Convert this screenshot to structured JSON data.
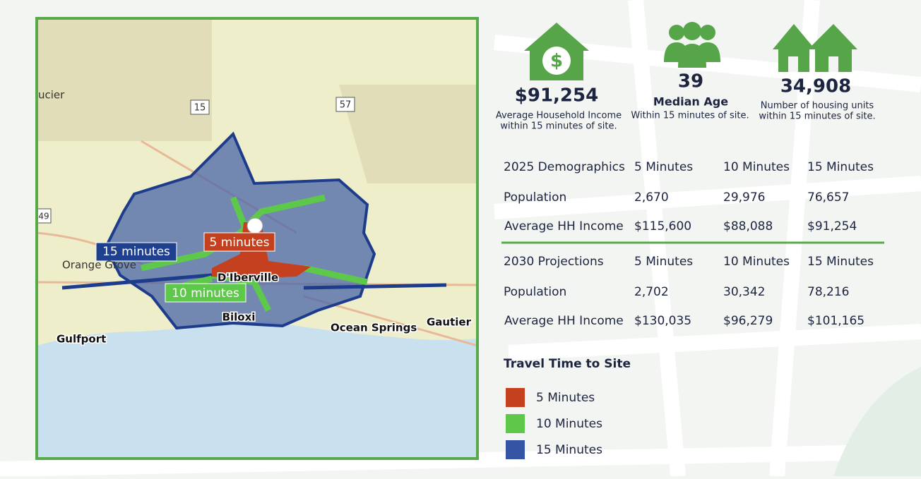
{
  "map": {
    "place_labels": [
      "ucier",
      "Orange Grove",
      "D'Iberville",
      "Biloxi",
      "Gulfport",
      "Ocean Springs",
      "Gautier"
    ],
    "road_shields": [
      "15",
      "57",
      "49"
    ],
    "zone_labels": [
      "5 minutes",
      "10 minutes",
      "15 minutes"
    ]
  },
  "stats": [
    {
      "value": "$91,254",
      "label": "Average Household Income",
      "sub": "within 15 minutes of site."
    },
    {
      "value": "39",
      "label": "Median Age",
      "sub": "Within 15 minutes of site."
    },
    {
      "value": "34,908",
      "label": "Number of housing units",
      "sub": "within 15 minutes of site."
    }
  ],
  "tables": [
    {
      "header": [
        "2025 Demographics",
        "5 Minutes",
        "10 Minutes",
        "15 Minutes"
      ],
      "rows": [
        [
          "Population",
          "2,670",
          "29,976",
          "76,657"
        ],
        [
          "Average HH Income",
          "$115,600",
          "$88,088",
          "$91,254"
        ]
      ]
    },
    {
      "header": [
        "2030 Projections",
        "5 Minutes",
        "10 Minutes",
        "15 Minutes"
      ],
      "rows": [
        [
          "Population",
          "2,702",
          "30,342",
          "78,216"
        ],
        [
          "Average HH Income",
          "$130,035",
          "$96,279",
          "$101,165"
        ]
      ]
    }
  ],
  "legend": {
    "title": "Travel Time to Site",
    "items": [
      "5 Minutes",
      "10 Minutes",
      "15 Minutes"
    ]
  }
}
